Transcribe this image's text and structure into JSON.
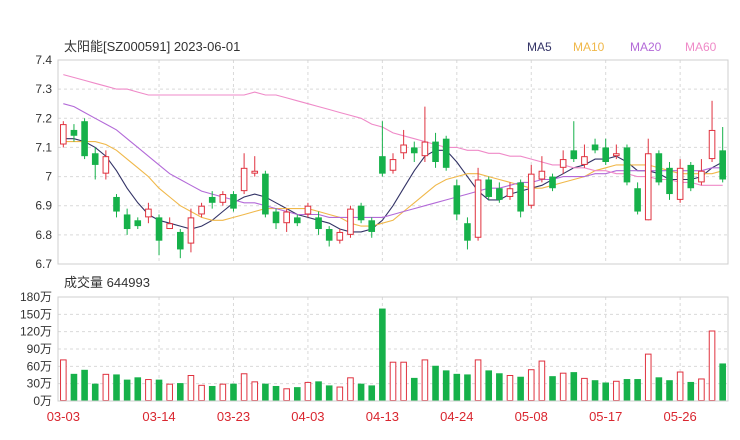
{
  "chart_data": {
    "type": "candlestick",
    "title": "太阳能[SZ000591] 2023-06-01",
    "price_axis": {
      "ylim": [
        6.7,
        7.4
      ],
      "ticks": [
        "7.4",
        "7.3",
        "7.2",
        "7.1",
        "7",
        "6.9",
        "6.8",
        "6.7"
      ]
    },
    "legend": [
      {
        "name": "MA5",
        "color": "#333366"
      },
      {
        "name": "MA10",
        "color": "#f0b84a"
      },
      {
        "name": "MA20",
        "color": "#b36ad8"
      },
      {
        "name": "MA60",
        "color": "#ef8ac8"
      }
    ],
    "colors": {
      "up": "#e0323f",
      "down": "#16b14a",
      "grid": "#d9d9d9",
      "axis_text": "#333333",
      "date_text": "#d9262f"
    },
    "volume": {
      "title": "成交量 644993",
      "ylim": [
        0,
        180
      ],
      "ticks": [
        "180万",
        "150万",
        "120万",
        "90万",
        "60万",
        "30万",
        "0万"
      ]
    },
    "dates": [
      "03-03",
      "03-14",
      "03-23",
      "04-03",
      "04-13",
      "04-24",
      "05-08",
      "05-17",
      "05-26"
    ],
    "date_index": [
      0,
      9,
      16,
      23,
      30,
      37,
      44,
      51,
      58
    ],
    "candles": [
      [
        7.11,
        7.18,
        7.19,
        7.1,
        72
      ],
      [
        7.16,
        7.14,
        7.18,
        7.12,
        47
      ],
      [
        7.19,
        7.07,
        7.2,
        7.06,
        54
      ],
      [
        7.08,
        7.04,
        7.1,
        6.99,
        30
      ],
      [
        7.01,
        7.07,
        7.09,
        6.99,
        47
      ],
      [
        6.93,
        6.88,
        6.94,
        6.86,
        46
      ],
      [
        6.87,
        6.82,
        6.89,
        6.8,
        37
      ],
      [
        6.85,
        6.83,
        6.86,
        6.82,
        41
      ],
      [
        6.86,
        6.89,
        6.91,
        6.84,
        38
      ],
      [
        6.86,
        6.78,
        6.87,
        6.73,
        37
      ],
      [
        6.82,
        6.84,
        6.86,
        6.82,
        30
      ],
      [
        6.81,
        6.75,
        6.82,
        6.72,
        31
      ],
      [
        6.77,
        6.86,
        6.89,
        6.74,
        45
      ],
      [
        6.87,
        6.9,
        6.91,
        6.86,
        28
      ],
      [
        6.93,
        6.91,
        6.95,
        6.89,
        26
      ],
      [
        6.91,
        6.94,
        6.95,
        6.9,
        30
      ],
      [
        6.94,
        6.89,
        6.95,
        6.88,
        30
      ],
      [
        6.95,
        7.03,
        7.08,
        6.94,
        48
      ],
      [
        7.01,
        7.02,
        7.07,
        7.0,
        34
      ],
      [
        7.01,
        6.87,
        7.02,
        6.86,
        30
      ],
      [
        6.88,
        6.84,
        6.89,
        6.82,
        26
      ],
      [
        6.84,
        6.88,
        6.89,
        6.81,
        22
      ],
      [
        6.86,
        6.84,
        6.87,
        6.83,
        24
      ],
      [
        6.87,
        6.9,
        6.91,
        6.86,
        33
      ],
      [
        6.86,
        6.82,
        6.88,
        6.8,
        34
      ],
      [
        6.82,
        6.78,
        6.83,
        6.76,
        27
      ],
      [
        6.78,
        6.81,
        6.82,
        6.77,
        25
      ],
      [
        6.8,
        6.89,
        6.9,
        6.79,
        41
      ],
      [
        6.9,
        6.85,
        6.91,
        6.84,
        30
      ],
      [
        6.85,
        6.81,
        6.86,
        6.79,
        27
      ],
      [
        7.07,
        7.01,
        7.19,
        7.0,
        160
      ],
      [
        7.02,
        7.06,
        7.08,
        7.01,
        68
      ],
      [
        7.08,
        7.11,
        7.16,
        7.06,
        68
      ],
      [
        7.1,
        7.08,
        7.12,
        7.05,
        40
      ],
      [
        7.07,
        7.12,
        7.24,
        7.05,
        72
      ],
      [
        7.12,
        7.05,
        7.15,
        7.03,
        61
      ],
      [
        7.13,
        7.03,
        7.14,
        7.02,
        53
      ],
      [
        6.97,
        6.87,
        6.99,
        6.85,
        47
      ],
      [
        6.84,
        6.78,
        6.86,
        6.75,
        46
      ],
      [
        6.79,
        6.99,
        7.03,
        6.78,
        72
      ],
      [
        6.99,
        6.93,
        7.0,
        6.92,
        53
      ],
      [
        6.96,
        6.92,
        6.98,
        6.91,
        48
      ],
      [
        6.93,
        6.96,
        6.98,
        6.92,
        45
      ],
      [
        6.98,
        6.88,
        6.99,
        6.86,
        42
      ],
      [
        6.9,
        7.01,
        7.04,
        6.89,
        55
      ],
      [
        6.99,
        7.02,
        7.07,
        6.98,
        70
      ],
      [
        7.0,
        6.96,
        7.01,
        6.95,
        43
      ],
      [
        7.03,
        7.06,
        7.09,
        7.01,
        49
      ],
      [
        7.09,
        7.06,
        7.19,
        7.05,
        50
      ],
      [
        7.04,
        7.07,
        7.11,
        7.03,
        40
      ],
      [
        7.11,
        7.09,
        7.13,
        7.08,
        36
      ],
      [
        7.1,
        7.05,
        7.13,
        7.04,
        32
      ],
      [
        7.07,
        7.08,
        7.11,
        7.06,
        35
      ],
      [
        7.1,
        6.98,
        7.11,
        6.97,
        38
      ],
      [
        6.96,
        6.88,
        6.98,
        6.87,
        38
      ],
      [
        6.85,
        7.08,
        7.13,
        6.85,
        82
      ],
      [
        7.08,
        6.98,
        7.09,
        6.97,
        41
      ],
      [
        7.03,
        6.94,
        7.05,
        6.92,
        36
      ],
      [
        6.92,
        7.03,
        7.06,
        6.91,
        51
      ],
      [
        7.04,
        6.96,
        7.05,
        6.95,
        33
      ],
      [
        6.98,
        7.02,
        7.06,
        6.97,
        39
      ],
      [
        7.06,
        7.16,
        7.26,
        7.05,
        122
      ],
      [
        7.09,
        6.99,
        7.17,
        6.98,
        65
      ]
    ],
    "ma": {
      "MA5": [
        7.13,
        7.13,
        7.12,
        7.1,
        7.07,
        7.02,
        6.96,
        6.91,
        6.87,
        6.85,
        6.84,
        6.83,
        6.82,
        6.83,
        6.85,
        6.88,
        6.91,
        6.93,
        6.94,
        6.93,
        6.91,
        6.89,
        6.87,
        6.86,
        6.85,
        6.84,
        6.82,
        6.81,
        6.81,
        6.82,
        6.85,
        6.9,
        6.96,
        7.02,
        7.07,
        7.09,
        7.09,
        7.05,
        7.0,
        6.95,
        6.92,
        6.92,
        6.94,
        6.95,
        6.96,
        6.97,
        6.99,
        7.01,
        7.03,
        7.04,
        7.06,
        7.06,
        7.07,
        7.05,
        7.02,
        7.02,
        7.01,
        6.99,
        6.99,
        6.99,
        7.0,
        7.03,
        7.05
      ],
      "MA10": [
        7.12,
        7.12,
        7.12,
        7.12,
        7.11,
        7.09,
        7.06,
        7.03,
        7.0,
        6.96,
        6.93,
        6.9,
        6.88,
        6.86,
        6.85,
        6.85,
        6.86,
        6.87,
        6.88,
        6.89,
        6.89,
        6.89,
        6.89,
        6.89,
        6.88,
        6.87,
        6.86,
        6.84,
        6.83,
        6.83,
        6.84,
        6.85,
        6.88,
        6.91,
        6.94,
        6.97,
        6.99,
        7.0,
        7.01,
        7.01,
        7.0,
        6.99,
        6.98,
        6.97,
        6.96,
        6.96,
        6.97,
        6.98,
        6.99,
        7.0,
        7.02,
        7.03,
        7.04,
        7.04,
        7.04,
        7.04,
        7.03,
        7.02,
        7.01,
        7.01,
        7.01,
        7.01,
        7.02
      ],
      "MA20": [
        7.25,
        7.24,
        7.22,
        7.2,
        7.18,
        7.16,
        7.13,
        7.1,
        7.07,
        7.04,
        7.01,
        6.99,
        6.97,
        6.95,
        6.94,
        6.93,
        6.92,
        6.91,
        6.91,
        6.9,
        6.89,
        6.88,
        6.87,
        6.87,
        6.87,
        6.86,
        6.86,
        6.86,
        6.86,
        6.86,
        6.86,
        6.87,
        6.88,
        6.89,
        6.9,
        6.91,
        6.92,
        6.93,
        6.94,
        6.95,
        6.96,
        6.96,
        6.97,
        6.98,
        6.98,
        6.99,
        6.99,
        7.0,
        7.0,
        7.0,
        7.01,
        7.01,
        7.02,
        7.02,
        7.02,
        7.02,
        7.02,
        7.02,
        7.02,
        7.02,
        7.02,
        7.03,
        7.03
      ],
      "MA60": [
        7.35,
        7.34,
        7.33,
        7.32,
        7.31,
        7.3,
        7.3,
        7.29,
        7.28,
        7.28,
        7.28,
        7.28,
        7.28,
        7.28,
        7.28,
        7.28,
        7.28,
        7.28,
        7.29,
        7.28,
        7.28,
        7.27,
        7.26,
        7.25,
        7.24,
        7.23,
        7.22,
        7.21,
        7.2,
        7.18,
        7.17,
        7.15,
        7.14,
        7.13,
        7.12,
        7.11,
        7.1,
        7.1,
        7.09,
        7.09,
        7.08,
        7.08,
        7.07,
        7.07,
        7.06,
        7.05,
        7.04,
        7.04,
        7.03,
        7.03,
        7.02,
        7.02,
        7.01,
        7.01,
        7.0,
        7.0,
        6.99,
        6.99,
        6.98,
        6.98,
        6.97,
        6.97,
        6.97
      ]
    }
  }
}
